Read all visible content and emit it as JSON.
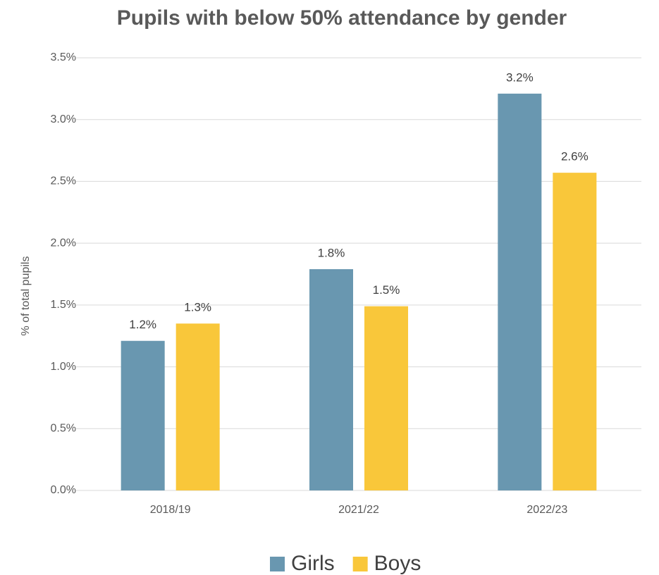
{
  "chart_data": {
    "type": "bar",
    "title": "Pupils with below 50% attendance by gender",
    "y_label": "% of total pupils",
    "categories": [
      "2018/19",
      "2021/22",
      "2022/23"
    ],
    "series": [
      {
        "name": "Girls",
        "color": "#6997b0",
        "values": [
          1.21,
          1.79,
          3.21
        ],
        "value_labels": [
          "1.2%",
          "1.8%",
          "3.2%"
        ]
      },
      {
        "name": "Boys",
        "color": "#f9c73a",
        "values": [
          1.35,
          1.49,
          2.57
        ],
        "value_labels": [
          "1.3%",
          "1.5%",
          "2.6%"
        ]
      }
    ],
    "ylim": [
      0,
      3.5
    ],
    "yticks": [
      {
        "value": 0,
        "label": "0.0%"
      },
      {
        "value": 0.5,
        "label": "0.5%"
      },
      {
        "value": 1,
        "label": "1.0%"
      },
      {
        "value": 1.5,
        "label": "1.5%"
      },
      {
        "value": 2,
        "label": "2.0%"
      },
      {
        "value": 2.5,
        "label": "2.5%"
      },
      {
        "value": 3,
        "label": "3.0%"
      },
      {
        "value": 3.5,
        "label": "3.5%"
      }
    ],
    "grid": true,
    "legend": "bottom"
  }
}
